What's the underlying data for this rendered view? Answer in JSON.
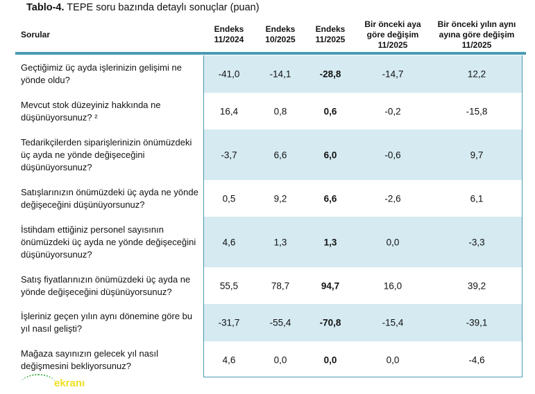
{
  "title": {
    "label": "Tablo-4.",
    "text": "TEPE soru bazında detaylı sonuçlar (puan)"
  },
  "headers": [
    "Sorular",
    "Endeks 11/2024",
    "Endeks 10/2025",
    "Endeks 11/2025",
    "Bir önceki aya göre değişim 11/2025",
    "Bir önceki yılın aynı ayına göre değişim 11/2025"
  ],
  "rows": [
    {
      "q": "Geçtiğimiz üç ayda işlerinizin gelişimi ne yönde oldu?",
      "v": [
        "-41,0",
        "-14,1",
        "-28,8",
        "-14,7",
        "12,2"
      ]
    },
    {
      "q": "Mevcut stok düzeyiniz hakkında ne düşünüyorsunuz? ²",
      "v": [
        "16,4",
        "0,8",
        "0,6",
        "-0,2",
        "-15,8"
      ]
    },
    {
      "q": "Tedarikçilerden siparişlerinizin önümüzdeki üç ayda ne yönde değişeceğini düşünüyorsunuz?",
      "v": [
        "-3,7",
        "6,6",
        "6,0",
        "-0,6",
        "9,7"
      ]
    },
    {
      "q": "Satışlarınızın önümüzdeki üç ayda ne yönde değişeceğini düşünüyorsunuz?",
      "v": [
        "0,5",
        "9,2",
        "6,6",
        "-2,6",
        "6,1"
      ]
    },
    {
      "q": "İstihdam ettiğiniz personel sayısının önümüzdeki üç ayda ne yönde değişeceğini düşünüyorsunuz?",
      "v": [
        "4,6",
        "1,3",
        "1,3",
        "0,0",
        "-3,3"
      ]
    },
    {
      "q": "Satış fiyatlarınızın önümüzdeki üç ayda ne yönde değişeceğini düşünüyorsunuz?",
      "v": [
        "55,5",
        "78,7",
        "94,7",
        "16,0",
        "39,2"
      ]
    },
    {
      "q": "İşleriniz geçen yılın aynı dönemine göre bu yıl nasıl gelişti?",
      "v": [
        "-31,7",
        "-55,4",
        "-70,8",
        "-15,4",
        "-39,1"
      ]
    },
    {
      "q": "Mağaza sayınızın gelecek yıl nasıl değişmesini bekliyorsunuz?",
      "v": [
        "4,6",
        "0,0",
        "0,0",
        "0,0",
        "-4,6"
      ]
    }
  ],
  "watermark": "ekranı"
}
